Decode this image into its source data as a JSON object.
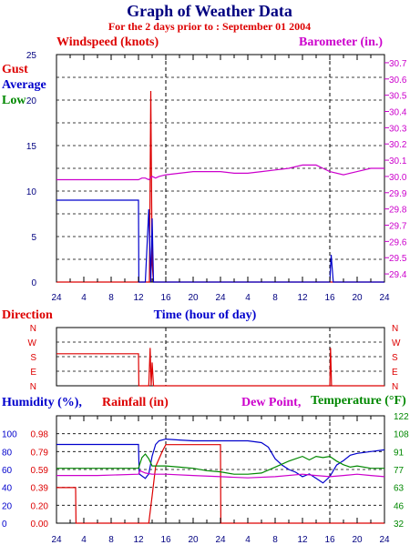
{
  "title": "Graph of Weather Data",
  "subtitle": "For the 2 days prior to : September 01 2004",
  "colors": {
    "red": "#dd0000",
    "blue": "#0000cc",
    "green": "#008800",
    "magenta": "#cc00cc",
    "navy": "#000080",
    "black": "#000000"
  },
  "chart_data": [
    {
      "type": "line",
      "labels": {
        "windspeed": "Windspeed (knots)",
        "barometer": "Barometer (in.)",
        "gust": "Gust",
        "average": "Average",
        "low": "Low",
        "xlabel": "Time (hour of day)"
      },
      "x_ticks": [
        "24",
        "4",
        "8",
        "12",
        "16",
        "20",
        "24",
        "4",
        "8",
        "12",
        "16",
        "20",
        "24"
      ],
      "y_left_ticks": [
        "0",
        "5",
        "10",
        "15",
        "20",
        "25"
      ],
      "y_left_range": [
        0,
        25
      ],
      "y_right_ticks": [
        "29.4",
        "29.5",
        "29.6",
        "29.7",
        "29.8",
        "29.9",
        "30.0",
        "30.1",
        "30.2",
        "30.3",
        "30.4",
        "30.5",
        "30.6",
        "30.7"
      ],
      "y_right_range": [
        29.35,
        30.75
      ],
      "grid": true,
      "series": [
        {
          "name": "Gust",
          "color": "#dd0000",
          "x": [
            0,
            13.6,
            13.8,
            14.0,
            14.2,
            14.5,
            48
          ],
          "y": [
            0,
            0,
            21,
            2,
            0,
            0,
            0
          ]
        },
        {
          "name": "Average",
          "color": "#0000cc",
          "x": [
            0,
            12,
            12.05,
            13,
            13.5,
            13.8,
            14.0,
            14.2,
            14.5,
            40,
            40.2,
            40.5,
            40.8,
            48
          ],
          "y": [
            9,
            9,
            0,
            0,
            8,
            0,
            7,
            0,
            0,
            0,
            3,
            0,
            0,
            0
          ]
        },
        {
          "name": "Barometer (in.)",
          "color": "#cc00cc",
          "x": [
            0,
            4,
            8,
            12,
            12.5,
            13,
            13.5,
            14,
            14.5,
            15,
            16,
            18,
            20,
            22,
            24,
            26,
            28,
            30,
            32,
            34,
            36,
            38,
            39,
            40,
            42,
            44,
            46,
            48
          ],
          "y": [
            29.98,
            29.98,
            29.98,
            29.98,
            29.99,
            29.99,
            29.98,
            30.0,
            29.99,
            30.0,
            30.01,
            30.02,
            30.03,
            30.03,
            30.03,
            30.02,
            30.02,
            30.03,
            30.04,
            30.05,
            30.07,
            30.07,
            30.05,
            30.03,
            30.01,
            30.03,
            30.05,
            30.05
          ]
        }
      ]
    },
    {
      "type": "line",
      "labels": {
        "direction": "Direction"
      },
      "y_ticks": [
        "N",
        "E",
        "S",
        "W",
        "N"
      ],
      "grid": true,
      "series": [
        {
          "name": "Direction",
          "color": "#dd0000",
          "x": [
            0,
            12,
            12.05,
            13.5,
            13.7,
            13.85,
            14.0,
            14.2,
            40,
            40.1,
            40.25,
            40.4,
            48
          ],
          "y": [
            2.2,
            2.2,
            0,
            0,
            2.6,
            0,
            1.6,
            0,
            0,
            2.6,
            0,
            0,
            0
          ]
        }
      ]
    },
    {
      "type": "line",
      "labels": {
        "humidity": "Humidity (%),",
        "rainfall": "Rainfall (in)",
        "dewpoint": "Dew Point,",
        "temperature": "Temperature (°F)"
      },
      "x_ticks": [
        "24",
        "4",
        "8",
        "12",
        "16",
        "20",
        "24",
        "4",
        "8",
        "12",
        "16",
        "20",
        "24"
      ],
      "y_humidity_ticks": [
        "0",
        "20",
        "40",
        "60",
        "80",
        "100"
      ],
      "y_rain_ticks": [
        "0.00",
        "0.20",
        "0.39",
        "0.59",
        "0.79",
        "0.98"
      ],
      "y_temp_ticks": [
        "32",
        "46",
        "63",
        "77",
        "91",
        "108",
        "122"
      ],
      "y_temp_range": [
        32,
        122
      ],
      "grid": true,
      "series": [
        {
          "name": "Rainfall",
          "color": "#dd0000",
          "x": [
            0,
            2.8,
            2.85,
            13.5,
            14.0,
            14.5,
            15.5,
            16,
            24,
            24.05,
            48
          ],
          "y": [
            0.39,
            0.39,
            0,
            0,
            0.3,
            0.62,
            0.79,
            0.86,
            0.86,
            0,
            0
          ],
          "unit": "in"
        },
        {
          "name": "Humidity",
          "color": "#0000cc",
          "x": [
            0,
            6,
            12,
            12.1,
            13,
            13.5,
            14,
            14.5,
            15,
            16,
            18,
            20,
            22,
            24,
            26,
            28,
            30,
            31,
            32,
            33,
            34,
            35,
            36,
            37,
            38,
            39,
            40,
            41,
            42,
            43,
            44,
            46,
            48
          ],
          "y": [
            88,
            88,
            88,
            55,
            50,
            55,
            75,
            88,
            92,
            94,
            93,
            92,
            92,
            92,
            92,
            92,
            90,
            85,
            72,
            65,
            60,
            57,
            52,
            55,
            50,
            45,
            52,
            65,
            70,
            76,
            78,
            80,
            82
          ],
          "unit": "%"
        },
        {
          "name": "Temperature",
          "color": "#008800",
          "x": [
            0,
            12,
            12.1,
            12.5,
            13,
            13.5,
            14,
            15,
            16,
            18,
            20,
            22,
            24,
            26,
            28,
            30,
            32,
            34,
            36,
            37,
            38,
            39,
            40,
            41,
            42,
            43,
            44,
            46,
            48
          ],
          "y": [
            78,
            78,
            80,
            87,
            90,
            86,
            80,
            80,
            80,
            79,
            78,
            76,
            75,
            73,
            73,
            74,
            79,
            84,
            88,
            85,
            88,
            87,
            88,
            84,
            81,
            79,
            80,
            78,
            78
          ],
          "unit": "F"
        },
        {
          "name": "Dew Point",
          "color": "#cc00cc",
          "x": [
            0,
            6,
            12,
            12.2,
            13,
            14,
            16,
            20,
            24,
            28,
            32,
            36,
            38,
            40,
            42,
            44,
            46,
            48
          ],
          "y": [
            72,
            72,
            73,
            76,
            74,
            73,
            73,
            72,
            71,
            70,
            71,
            73,
            72,
            71,
            72,
            73,
            72,
            71
          ],
          "unit": "F"
        }
      ]
    }
  ]
}
